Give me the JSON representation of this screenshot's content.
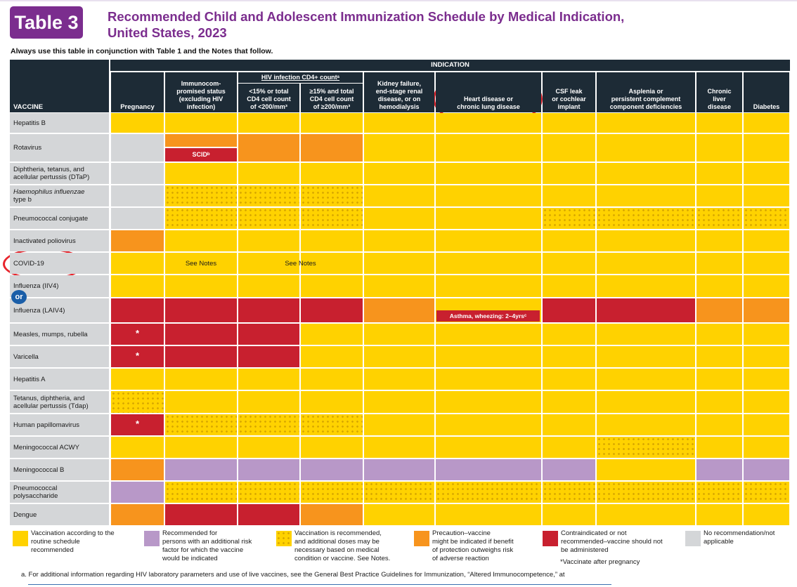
{
  "header": {
    "badge": "Table 3",
    "title": "Recommended Child and Adolescent Immunization Schedule by Medical Indication,\nUnited States, 2023",
    "instruction": "Always use this table in conjunction with Table 1 and the Notes that follow."
  },
  "columns": {
    "vaccine": "VACCINE",
    "indication": "INDICATION",
    "hiv_group": "HIV infection CD4+ countᵃ",
    "headers": [
      "Pregnancy",
      "Immunocom-\npromised status\n(excluding HIV\ninfection)",
      "<15% or total\nCD4 cell count\nof <200/mm³",
      "≥15% and total\nCD4 cell count\nof ≥200/mm³",
      "Kidney failure,\nend-stage renal\ndisease, or on\nhemodialysis",
      "Heart disease or\nchronic lung disease",
      "CSF leak\nor cochlear\nimplant",
      "Asplenia or\npersistent complement\ncomponent deficiencies",
      "Chronic\nliver\ndisease",
      "Diabetes"
    ]
  },
  "vaccines": [
    "Hepatitis B",
    "Rotavirus",
    "Diphtheria, tetanus, and\nacellular pertussis (DTaP)",
    "Haemophilus influenzae\ntype b",
    "Pneumococcal conjugate",
    "Inactivated poliovirus",
    "COVID-19",
    "Influenza (IIV4)",
    "Influenza (LAIV4)",
    "Measles, mumps, rubella",
    "Varicella",
    "Hepatitis A",
    "Tetanus, diphtheria, and\nacellular pertussis (Tdap)",
    "Human papillomavirus",
    "Meningococcal ACWY",
    "Meningococcal B",
    "Pneumococcal\npolysaccharide",
    "Dengue"
  ],
  "cell_notes": {
    "scid": "SCIDᵇ",
    "see_notes": "See Notes",
    "asthma": "Asthma, wheezing: 2–4yrsᶜ",
    "star": "*",
    "or": "or"
  },
  "legend": [
    {
      "color": "#ffd200",
      "text": "Vaccination according to the\nroutine schedule\nrecommended"
    },
    {
      "color": "#b898c8",
      "text": "Recommended for\npersons with an additional risk\nfactor for which the vaccine\nwould be indicated"
    },
    {
      "color": "dotted",
      "text": "Vaccination is recommended,\nand additional doses may be\nnecessary based on medical\ncondition or vaccine. See Notes."
    },
    {
      "color": "#f7941d",
      "text": "Precaution–vaccine\nmight be indicated if benefit\nof protection outweighs risk\nof adverse reaction"
    },
    {
      "color": "#c8202f",
      "text": "Contraindicated or not\nrecommended–vaccine should not\nbe administered"
    },
    {
      "color": "#d4d6d8",
      "text": "No recommendation/not\napplicable"
    }
  ],
  "legend_note": "*Vaccinate after pregnancy",
  "footnote_a": "a.  For additional information regarding HIV laboratory parameters and use of live vaccines, see the General Best Practice Guidelines for Immunization, “Altered Immunocompetence,” at",
  "colors": {
    "purple": "#7b2d8e",
    "dark_header": "#1d2b36",
    "annotation": "#e8242c"
  }
}
